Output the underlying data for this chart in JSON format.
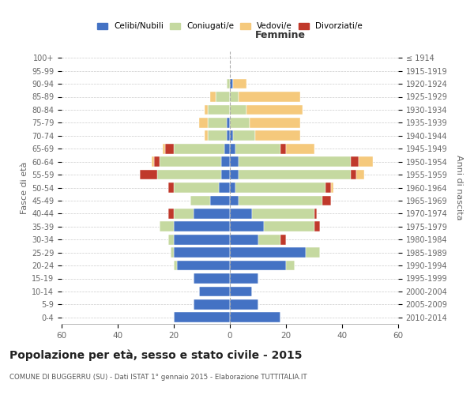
{
  "age_groups": [
    "0-4",
    "5-9",
    "10-14",
    "15-19",
    "20-24",
    "25-29",
    "30-34",
    "35-39",
    "40-44",
    "45-49",
    "50-54",
    "55-59",
    "60-64",
    "65-69",
    "70-74",
    "75-79",
    "80-84",
    "85-89",
    "90-94",
    "95-99",
    "100+"
  ],
  "birth_years": [
    "2010-2014",
    "2005-2009",
    "2000-2004",
    "1995-1999",
    "1990-1994",
    "1985-1989",
    "1980-1984",
    "1975-1979",
    "1970-1974",
    "1965-1969",
    "1960-1964",
    "1955-1959",
    "1950-1954",
    "1945-1949",
    "1940-1944",
    "1935-1939",
    "1930-1934",
    "1925-1929",
    "1920-1924",
    "1915-1919",
    "≤ 1914"
  ],
  "colors": {
    "celibi": "#4472c4",
    "coniugati": "#c5d9a0",
    "vedovi": "#f5c97c",
    "divorziati": "#c0392b"
  },
  "males": {
    "celibi": [
      20,
      13,
      11,
      13,
      19,
      20,
      20,
      20,
      13,
      7,
      4,
      3,
      3,
      2,
      1,
      1,
      0,
      0,
      0,
      0,
      0
    ],
    "coniugati": [
      0,
      0,
      0,
      0,
      1,
      1,
      2,
      5,
      7,
      7,
      16,
      23,
      22,
      18,
      7,
      7,
      8,
      5,
      1,
      0,
      0
    ],
    "vedovi": [
      0,
      0,
      0,
      0,
      0,
      0,
      0,
      0,
      0,
      0,
      0,
      0,
      1,
      1,
      1,
      3,
      1,
      2,
      0,
      0,
      0
    ],
    "divorziati": [
      0,
      0,
      0,
      0,
      0,
      0,
      0,
      0,
      2,
      0,
      2,
      6,
      2,
      3,
      0,
      0,
      0,
      0,
      0,
      0,
      0
    ]
  },
  "females": {
    "nubili": [
      18,
      10,
      8,
      10,
      20,
      27,
      10,
      12,
      8,
      3,
      2,
      3,
      3,
      2,
      1,
      0,
      0,
      0,
      1,
      0,
      0
    ],
    "coniugate": [
      0,
      0,
      0,
      0,
      3,
      5,
      8,
      18,
      22,
      30,
      32,
      40,
      40,
      16,
      8,
      7,
      6,
      3,
      0,
      0,
      0
    ],
    "vedove": [
      0,
      0,
      0,
      0,
      0,
      0,
      0,
      0,
      0,
      0,
      1,
      3,
      5,
      10,
      16,
      18,
      20,
      22,
      5,
      0,
      0
    ],
    "divorziate": [
      0,
      0,
      0,
      0,
      0,
      0,
      2,
      2,
      1,
      3,
      2,
      2,
      3,
      2,
      0,
      0,
      0,
      0,
      0,
      0,
      0
    ]
  },
  "title": "Popolazione per età, sesso e stato civile - 2015",
  "subtitle": "COMUNE DI BUGGERRU (SU) - Dati ISTAT 1° gennaio 2015 - Elaborazione TUTTITALIA.IT",
  "xlabel_right": "Femmine",
  "ylabel_left": "Fasce di età",
  "ylabel_right": "Anni di nascita",
  "xlim": 60,
  "legend_labels": [
    "Celibi/Nubili",
    "Coniugati/e",
    "Vedovi/e",
    "Divorziati/e"
  ],
  "bg_color": "#ffffff",
  "grid_color": "#cccccc"
}
